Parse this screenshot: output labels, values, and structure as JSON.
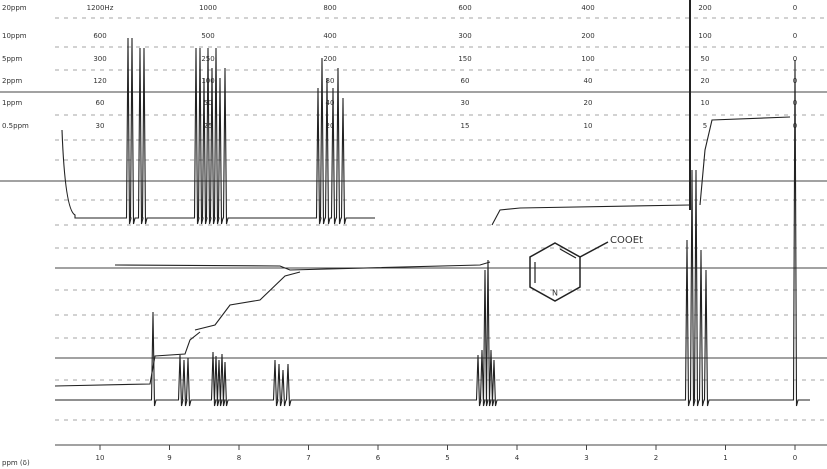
{
  "scales": [
    {
      "label": "20ppm",
      "values": [
        "1200Hz",
        1000,
        800,
        600,
        400,
        200,
        0
      ]
    },
    {
      "label": "10ppm",
      "values": [
        600,
        500,
        400,
        300,
        200,
        100,
        0
      ]
    },
    {
      "label": "5ppm",
      "values": [
        300,
        250,
        200,
        150,
        100,
        50,
        0
      ]
    },
    {
      "label": "2ppm",
      "values": [
        120,
        100,
        80,
        60,
        40,
        20,
        0
      ]
    },
    {
      "label": "1ppm",
      "values": [
        60,
        50,
        40,
        30,
        20,
        10,
        0
      ]
    },
    {
      "label": "0.5ppm",
      "values": [
        30,
        25,
        20,
        15,
        10,
        5,
        0
      ]
    }
  ],
  "axis": {
    "label": "ppm (δ)",
    "xlim": [
      10,
      0
    ],
    "xticks": [
      10,
      9,
      8,
      7,
      6,
      5,
      4,
      3,
      2,
      1,
      0
    ]
  },
  "molecule": {
    "substituent": "COOEt",
    "atom": "N"
  }
}
